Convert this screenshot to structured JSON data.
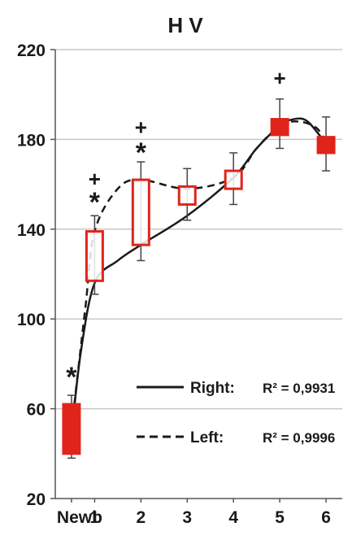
{
  "chart_data": {
    "type": "box",
    "title": "H V",
    "categories": [
      "Newb",
      "1",
      "2",
      "3",
      "4",
      "5",
      "6"
    ],
    "x": [
      0.5,
      1,
      2,
      3,
      4,
      5,
      6
    ],
    "ylim": [
      20,
      220
    ],
    "yticks": [
      20,
      60,
      100,
      140,
      180,
      220
    ],
    "grid": true,
    "legend_position": "bottom-right",
    "boxes": [
      {
        "category": "Newb",
        "x": 0.5,
        "low": 40,
        "high": 62,
        "whisker_low": 38,
        "whisker_high": 66,
        "filled": true
      },
      {
        "category": "1",
        "x": 1,
        "low": 117,
        "high": 139,
        "whisker_low": 111,
        "whisker_high": 146,
        "filled": false
      },
      {
        "category": "2",
        "x": 2,
        "low": 133,
        "high": 162,
        "whisker_low": 126,
        "whisker_high": 170,
        "filled": false
      },
      {
        "category": "3",
        "x": 3,
        "low": 151,
        "high": 159,
        "whisker_low": 144,
        "whisker_high": 167,
        "filled": false
      },
      {
        "category": "4",
        "x": 4,
        "low": 158,
        "high": 166,
        "whisker_low": 151,
        "whisker_high": 174,
        "filled": false
      },
      {
        "category": "5",
        "x": 5,
        "low": 182,
        "high": 189,
        "whisker_low": 176,
        "whisker_high": 198,
        "filled": true
      },
      {
        "category": "6",
        "x": 6,
        "low": 174,
        "high": 181,
        "whisker_low": 166,
        "whisker_high": 190,
        "filled": true
      }
    ],
    "series": [
      {
        "name": "Right:",
        "style": "solid",
        "r2_label": "R² = 0,9931",
        "points": [
          [
            0.5,
            48
          ],
          [
            0.7,
            85
          ],
          [
            1,
            116
          ],
          [
            1.5,
            126
          ],
          [
            2,
            133
          ],
          [
            3,
            146
          ],
          [
            4,
            163
          ],
          [
            4.5,
            176
          ],
          [
            5,
            186
          ],
          [
            5.3,
            189
          ],
          [
            5.6,
            188
          ],
          [
            6,
            178
          ]
        ]
      },
      {
        "name": "Left:",
        "style": "dashed",
        "r2_label": "R² = 0,9996",
        "points": [
          [
            0.5,
            51
          ],
          [
            0.8,
            105
          ],
          [
            1,
            139
          ],
          [
            1.5,
            158
          ],
          [
            2,
            162
          ],
          [
            3,
            158
          ],
          [
            4,
            163
          ],
          [
            4.5,
            176
          ],
          [
            5,
            186
          ],
          [
            5.4,
            188
          ],
          [
            5.8,
            185
          ],
          [
            6,
            178
          ]
        ]
      }
    ],
    "annotations": [
      {
        "x": 0.5,
        "y": 75,
        "text": "*"
      },
      {
        "x": 1,
        "y": 162,
        "text": "+"
      },
      {
        "x": 1,
        "y": 153,
        "text": "*"
      },
      {
        "x": 2,
        "y": 185,
        "text": "+"
      },
      {
        "x": 2,
        "y": 175,
        "text": "*"
      },
      {
        "x": 5,
        "y": 207,
        "text": "+"
      }
    ]
  },
  "colors": {
    "box": "#e0241b",
    "whisker": "#444444",
    "curve": "#1a1a1a",
    "grid": "#c8c8c8",
    "axis": "#555555",
    "text": "#1a1a1a"
  }
}
